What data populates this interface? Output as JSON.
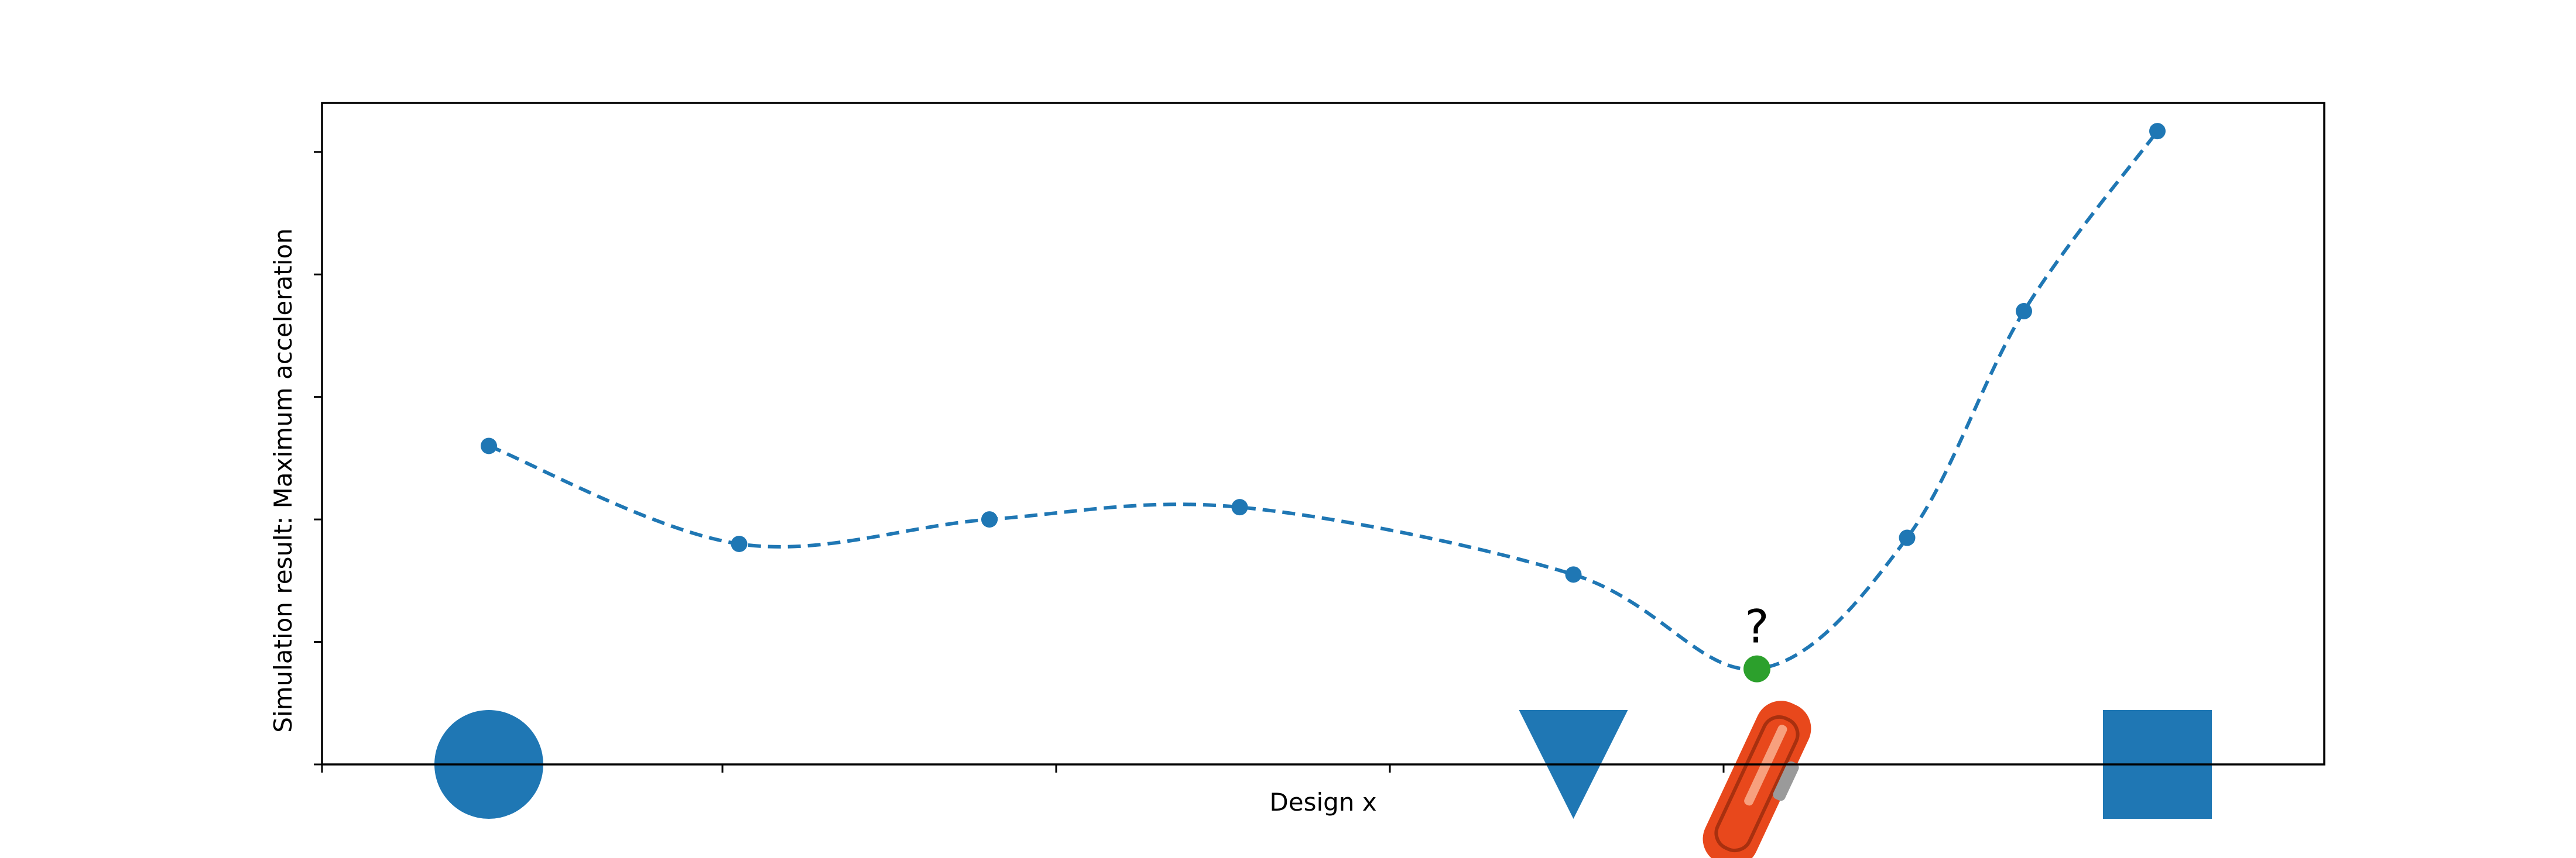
{
  "chart_data": {
    "type": "line",
    "title": "",
    "xlabel": "Design x",
    "ylabel": "Simulation result: Maximum acceleration",
    "xlim": [
      0,
      12
    ],
    "ylim": [
      0,
      5.4
    ],
    "grid": false,
    "legend": "none",
    "tick_labels_visible": false,
    "x_ticks": [
      0,
      2.4,
      4.4,
      6.4,
      8.4
    ],
    "y_ticks": [
      0,
      1,
      2,
      3,
      4,
      5
    ],
    "series": [
      {
        "style": "dashed",
        "marker": "circle",
        "color": "#1f77b4",
        "x": [
          1.0,
          2.5,
          4.0,
          5.5,
          7.5,
          9.5,
          10.2,
          11.0
        ],
        "y": [
          2.6,
          1.8,
          2.0,
          2.1,
          1.55,
          1.85,
          3.7,
          5.17
        ]
      }
    ],
    "highlight_point": {
      "x": 8.6,
      "y": 0.78,
      "color": "#2ca02c",
      "annotation": "?"
    },
    "shape_markers": [
      {
        "shape": "circle",
        "x": 1.0,
        "color": "#1f77b4"
      },
      {
        "shape": "triangle-down",
        "x": 7.5,
        "color": "#1f77b4"
      },
      {
        "shape": "square",
        "x": 11.0,
        "color": "#1f77b4"
      }
    ],
    "unknown_design_icon": {
      "name": "orange-part-icon",
      "x": 8.6,
      "color": "#e8481c"
    }
  }
}
